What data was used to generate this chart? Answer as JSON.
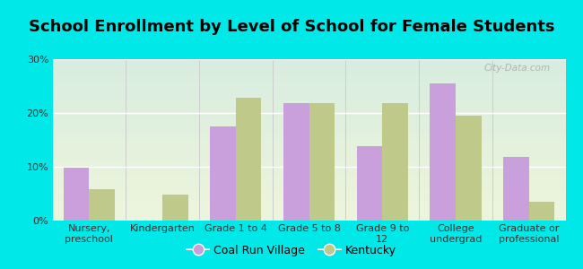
{
  "title": "School Enrollment by Level of School for Female Students",
  "categories": [
    "Nursery,\npreschool",
    "Kindergarten",
    "Grade 1 to 4",
    "Grade 5 to 8",
    "Grade 9 to\n12",
    "College\nundergrad",
    "Graduate or\nprofessional"
  ],
  "coal_run_village": [
    9.9,
    0,
    17.5,
    21.8,
    13.8,
    25.5,
    11.8
  ],
  "kentucky": [
    5.8,
    4.9,
    22.8,
    21.8,
    21.8,
    19.5,
    3.5
  ],
  "bar_color_crv": "#c9a0dc",
  "bar_color_ky": "#bec98a",
  "background_color": "#00e8e8",
  "plot_bg_top": "#d8ede0",
  "plot_bg_bottom": "#eef5dc",
  "ylim": [
    0,
    30
  ],
  "yticks": [
    0,
    10,
    20,
    30
  ],
  "yticklabels": [
    "0%",
    "10%",
    "20%",
    "30%"
  ],
  "legend_crv": "Coal Run Village",
  "legend_ky": "Kentucky",
  "title_fontsize": 13,
  "tick_fontsize": 8,
  "legend_fontsize": 9,
  "bar_width": 0.35,
  "watermark": "City-Data.com"
}
